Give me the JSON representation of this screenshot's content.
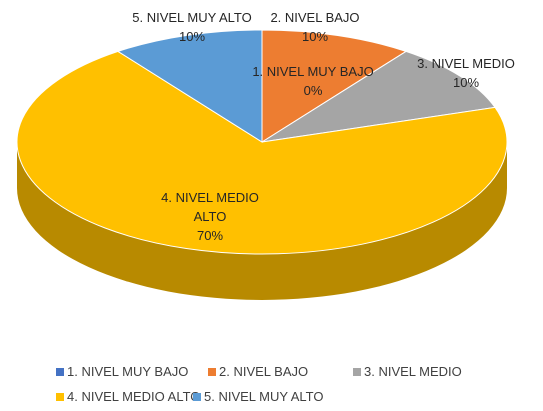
{
  "chart_data": {
    "type": "pie",
    "categories": [
      "1. NIVEL MUY BAJO",
      "2. NIVEL BAJO",
      "3. NIVEL MEDIO",
      "4. NIVEL MEDIO ALTO",
      "5. NIVEL MUY ALTO"
    ],
    "values": [
      0,
      10,
      10,
      70,
      10
    ],
    "value_labels": [
      "0%",
      "10%",
      "10%",
      "70%",
      "10%"
    ],
    "colors": [
      "#4472c4",
      "#ed7d31",
      "#a5a5a5",
      "#ffc000",
      "#5b9bd5"
    ],
    "legend": "bottom"
  }
}
